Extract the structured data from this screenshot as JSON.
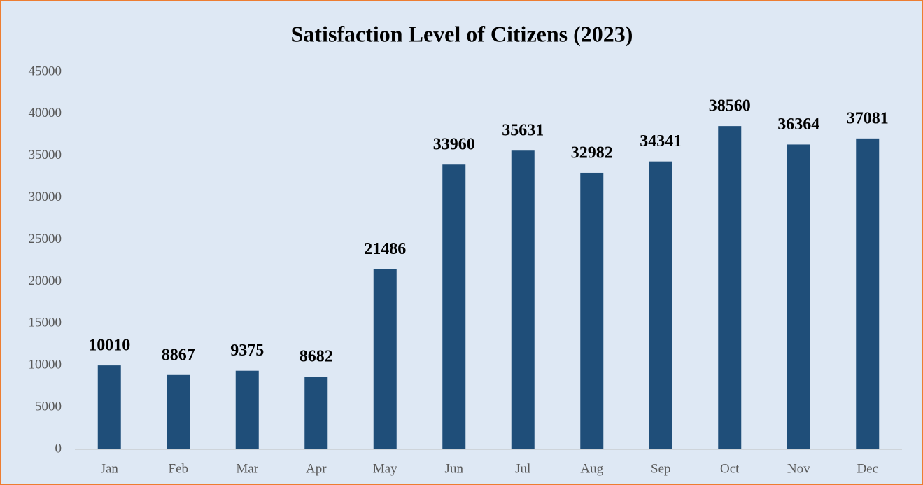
{
  "chart_data": {
    "type": "bar",
    "title": "Satisfaction Level of Citizens (2023)",
    "categories": [
      "Jan",
      "Feb",
      "Mar",
      "Apr",
      "May",
      "Jun",
      "Jul",
      "Aug",
      "Sep",
      "Oct",
      "Nov",
      "Dec"
    ],
    "values": [
      10010,
      8867,
      9375,
      8682,
      21486,
      33960,
      35631,
      32982,
      34341,
      38560,
      36364,
      37081
    ],
    "color": "#1f4e79",
    "ylim": [
      0,
      45000
    ],
    "yticks": [
      0,
      5000,
      10000,
      15000,
      20000,
      25000,
      30000,
      35000,
      40000,
      45000
    ],
    "grid": false
  }
}
